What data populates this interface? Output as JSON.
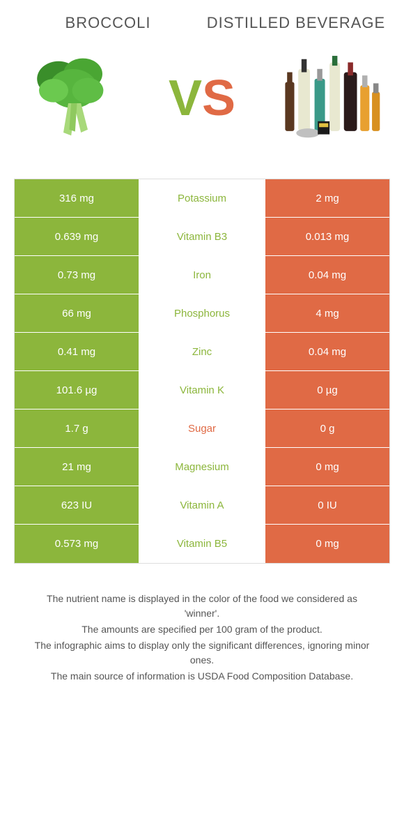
{
  "header": {
    "left_title": "Broccoli",
    "right_title": "Distilled beverage",
    "vs_v": "V",
    "vs_s": "S"
  },
  "colors": {
    "left": "#8cb63c",
    "right": "#e06a45",
    "text": "#555555",
    "border": "#dddddd"
  },
  "table": {
    "rows": [
      {
        "left": "316 mg",
        "mid": "Potassium",
        "right": "2 mg",
        "winner": "left"
      },
      {
        "left": "0.639 mg",
        "mid": "Vitamin B3",
        "right": "0.013 mg",
        "winner": "left"
      },
      {
        "left": "0.73 mg",
        "mid": "Iron",
        "right": "0.04 mg",
        "winner": "left"
      },
      {
        "left": "66 mg",
        "mid": "Phosphorus",
        "right": "4 mg",
        "winner": "left"
      },
      {
        "left": "0.41 mg",
        "mid": "Zinc",
        "right": "0.04 mg",
        "winner": "left"
      },
      {
        "left": "101.6 µg",
        "mid": "Vitamin K",
        "right": "0 µg",
        "winner": "left"
      },
      {
        "left": "1.7 g",
        "mid": "Sugar",
        "right": "0 g",
        "winner": "right"
      },
      {
        "left": "21 mg",
        "mid": "Magnesium",
        "right": "0 mg",
        "winner": "left"
      },
      {
        "left": "623 IU",
        "mid": "Vitamin A",
        "right": "0 IU",
        "winner": "left"
      },
      {
        "left": "0.573 mg",
        "mid": "Vitamin B5",
        "right": "0 mg",
        "winner": "left"
      }
    ]
  },
  "footer": {
    "line1": "The nutrient name is displayed in the color of the food we considered as 'winner'.",
    "line2": "The amounts are specified per 100 gram of the product.",
    "line3": "The infographic aims to display only the significant differences, ignoring minor ones.",
    "line4": "The main source of information is USDA Food Composition Database."
  }
}
